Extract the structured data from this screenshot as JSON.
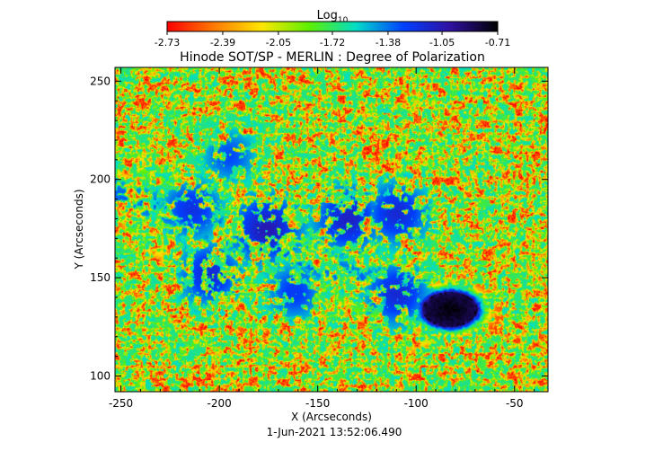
{
  "chart_data": {
    "type": "heatmap",
    "title": "Hinode SOT/SP - MERLIN : Degree of Polarization",
    "xlabel": "X (Arcseconds)",
    "ylabel": "Y (Arcseconds)",
    "timestamp": "1-Jun-2021 13:52:06.490",
    "xlim": [
      -253,
      -33
    ],
    "ylim": [
      92,
      257
    ],
    "x_ticks": [
      -250,
      -200,
      -150,
      -100,
      -50
    ],
    "y_ticks": [
      100,
      150,
      200,
      250
    ],
    "colorbar": {
      "label_main": "Log",
      "label_sub": "10",
      "scale": "log10",
      "range": [
        -2.73,
        -0.71
      ],
      "tick_labels": [
        "-2.73",
        "-2.39",
        "-2.05",
        "-1.72",
        "-1.38",
        "-1.05",
        "-0.71"
      ],
      "colormap": [
        "#ff0000",
        "#ff7a00",
        "#ffe600",
        "#5ef000",
        "#00dcc8",
        "#0040ff",
        "#3010a0",
        "#000000"
      ]
    },
    "background_value": -2.62,
    "features": [
      {
        "kind": "sunspot",
        "x": -83,
        "y": 134,
        "rx": 14,
        "ry": 9,
        "value": -0.71
      },
      {
        "kind": "network-patch",
        "x": -176,
        "y": 175,
        "value": -1.05
      },
      {
        "kind": "network-patch",
        "x": -214,
        "y": 185,
        "value": -1.2
      },
      {
        "kind": "network-patch",
        "x": -205,
        "y": 152,
        "value": -1.15
      },
      {
        "kind": "network-patch",
        "x": -135,
        "y": 180,
        "value": -1.1
      },
      {
        "kind": "network-patch",
        "x": -110,
        "y": 183,
        "value": -1.15
      },
      {
        "kind": "network-patch",
        "x": -195,
        "y": 212,
        "value": -1.3
      },
      {
        "kind": "network-patch",
        "x": -162,
        "y": 143,
        "value": -1.25
      },
      {
        "kind": "network-patch",
        "x": -110,
        "y": 142,
        "value": -1.15
      }
    ]
  }
}
